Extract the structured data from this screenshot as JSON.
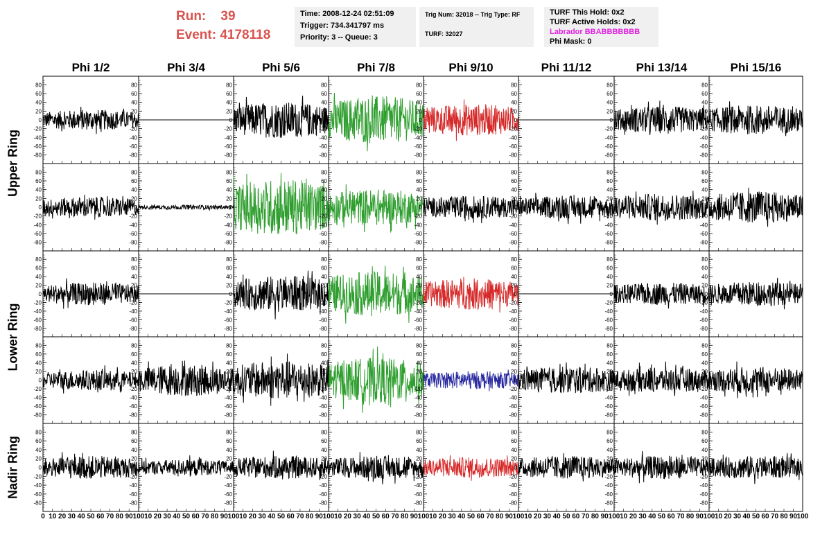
{
  "header": {
    "run_label": "Run:",
    "run_value": "39",
    "event_label": "Event:",
    "event_value": "4178118",
    "time": "Time: 2008-12-24 02:51:09",
    "trigger": "Trigger: 734.341797 ms",
    "priority": "Priority: 3 -- Queue: 3",
    "trig_num": "Trig Num: 32018 -- Trig Type: RF",
    "turf": "TURF: 32027",
    "turf_this_hold": "TURF This Hold: 0x2",
    "turf_active_holds": "TURF Active Holds: 0x2",
    "labrador": "Labrador BBABBBBBBB",
    "phi_mask": "Phi Mask: 0"
  },
  "colors": {
    "run_text": "#d9534f",
    "labrador_text": "#e020e0",
    "black": "#000000",
    "green": "#2e9e2e",
    "red": "#d62a2a",
    "blue": "#2a2aa0",
    "info_bg": "#f0f0f0"
  },
  "chart_data": {
    "type": "line",
    "columns": [
      "Phi 1/2",
      "Phi 3/4",
      "Phi 5/6",
      "Phi 7/8",
      "Phi 9/10",
      "Phi 11/12",
      "Phi 13/14",
      "Phi 15/16"
    ],
    "rings": [
      "Upper Ring",
      "Lower Ring",
      "Nadir Ring"
    ],
    "ylim": [
      -90,
      90
    ],
    "xlim": [
      0,
      100
    ],
    "yticks": [
      -80,
      -60,
      -40,
      -20,
      0,
      20,
      40,
      60,
      80
    ],
    "xticks": [
      0,
      10,
      20,
      30,
      40,
      50,
      60,
      70,
      80,
      90,
      100
    ],
    "rows": [
      {
        "ring": "Upper Ring",
        "panels": [
          {
            "color": "black",
            "amp": 18
          },
          {
            "color": "black",
            "amp": 0
          },
          {
            "color": "black",
            "amp": 32
          },
          {
            "color": "green",
            "amp": 42
          },
          {
            "color": "red",
            "amp": 28
          },
          {
            "color": "black",
            "amp": 0
          },
          {
            "color": "black",
            "amp": 24
          },
          {
            "color": "black",
            "amp": 26
          }
        ]
      },
      {
        "ring": "Upper Ring",
        "panels": [
          {
            "color": "black",
            "amp": 18
          },
          {
            "color": "black",
            "amp": 4
          },
          {
            "color": "green",
            "amp": 50
          },
          {
            "color": "green",
            "amp": 32
          },
          {
            "color": "black",
            "amp": 20
          },
          {
            "color": "black",
            "amp": 20
          },
          {
            "color": "black",
            "amp": 24
          },
          {
            "color": "black",
            "amp": 28
          }
        ]
      },
      {
        "ring": "Lower Ring",
        "panels": [
          {
            "color": "black",
            "amp": 20
          },
          {
            "color": "black",
            "amp": 0
          },
          {
            "color": "black",
            "amp": 32
          },
          {
            "color": "green",
            "amp": 40
          },
          {
            "color": "red",
            "amp": 28
          },
          {
            "color": "black",
            "amp": 0
          },
          {
            "color": "black",
            "amp": 20
          },
          {
            "color": "black",
            "amp": 22
          }
        ]
      },
      {
        "ring": "Lower Ring",
        "panels": [
          {
            "color": "black",
            "amp": 18
          },
          {
            "color": "black",
            "amp": 28
          },
          {
            "color": "black",
            "amp": 34
          },
          {
            "color": "green",
            "amp": 40
          },
          {
            "color": "blue",
            "amp": 16
          },
          {
            "color": "black",
            "amp": 24
          },
          {
            "color": "black",
            "amp": 22
          },
          {
            "color": "black",
            "amp": 24
          }
        ]
      },
      {
        "ring": "Nadir Ring",
        "panels": [
          {
            "color": "black",
            "amp": 20
          },
          {
            "color": "black",
            "amp": 14
          },
          {
            "color": "black",
            "amp": 20
          },
          {
            "color": "black",
            "amp": 20
          },
          {
            "color": "red",
            "amp": 18
          },
          {
            "color": "black",
            "amp": 20
          },
          {
            "color": "black",
            "amp": 20
          },
          {
            "color": "black",
            "amp": 20
          }
        ]
      }
    ]
  }
}
